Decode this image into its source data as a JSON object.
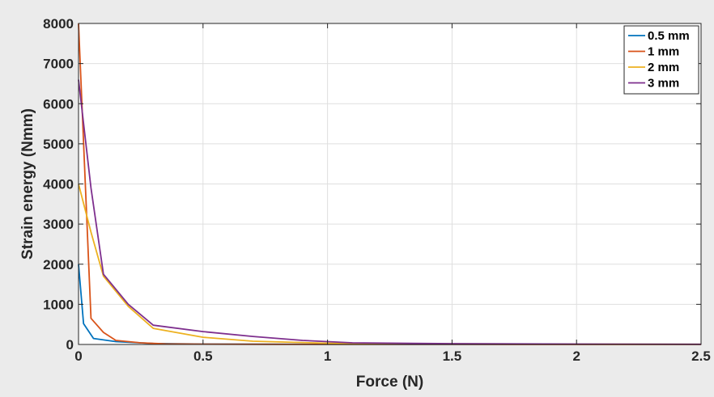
{
  "chart_data": {
    "type": "line",
    "title": "",
    "xlabel": "Force (N)",
    "ylabel": "Strain energy (Nmm)",
    "xlim": [
      0,
      2.5
    ],
    "ylim": [
      0,
      8000
    ],
    "xticks": [
      0,
      0.5,
      1,
      1.5,
      2,
      2.5
    ],
    "xtick_labels": [
      "0",
      "0.5",
      "1",
      "1.5",
      "2",
      "2.5"
    ],
    "yticks": [
      0,
      1000,
      2000,
      3000,
      4000,
      5000,
      6000,
      7000,
      8000
    ],
    "ytick_labels": [
      "0",
      "1000",
      "2000",
      "3000",
      "4000",
      "5000",
      "6000",
      "7000",
      "8000"
    ],
    "grid": true,
    "legend_position": "top-right",
    "series": [
      {
        "name": "0.5 mm",
        "color": "#0072bd",
        "x": [
          0,
          0.02,
          0.06,
          0.15,
          0.3,
          0.5,
          1,
          1.5,
          2,
          2.5
        ],
        "y": [
          2000,
          520,
          150,
          70,
          25,
          10,
          5,
          3,
          2,
          1
        ]
      },
      {
        "name": "1 mm",
        "color": "#d95319",
        "x": [
          0,
          0.05,
          0.1,
          0.15,
          0.25,
          0.35,
          0.5,
          0.75,
          1,
          1.5,
          2,
          2.5
        ],
        "y": [
          8000,
          650,
          300,
          100,
          40,
          15,
          8,
          5,
          3,
          2,
          1,
          1
        ]
      },
      {
        "name": "2 mm",
        "color": "#edb120",
        "x": [
          0,
          0.05,
          0.1,
          0.2,
          0.3,
          0.5,
          0.7,
          1,
          1.5,
          2,
          2.5
        ],
        "y": [
          4000,
          2800,
          1700,
          950,
          400,
          180,
          80,
          30,
          15,
          8,
          5
        ]
      },
      {
        "name": "3 mm",
        "color": "#7e2f8e",
        "x": [
          0,
          0.05,
          0.1,
          0.2,
          0.3,
          0.5,
          0.7,
          0.9,
          1.1,
          1.5,
          2,
          2.5
        ],
        "y": [
          6600,
          3900,
          1750,
          1000,
          480,
          320,
          200,
          100,
          40,
          20,
          10,
          5
        ]
      }
    ]
  }
}
